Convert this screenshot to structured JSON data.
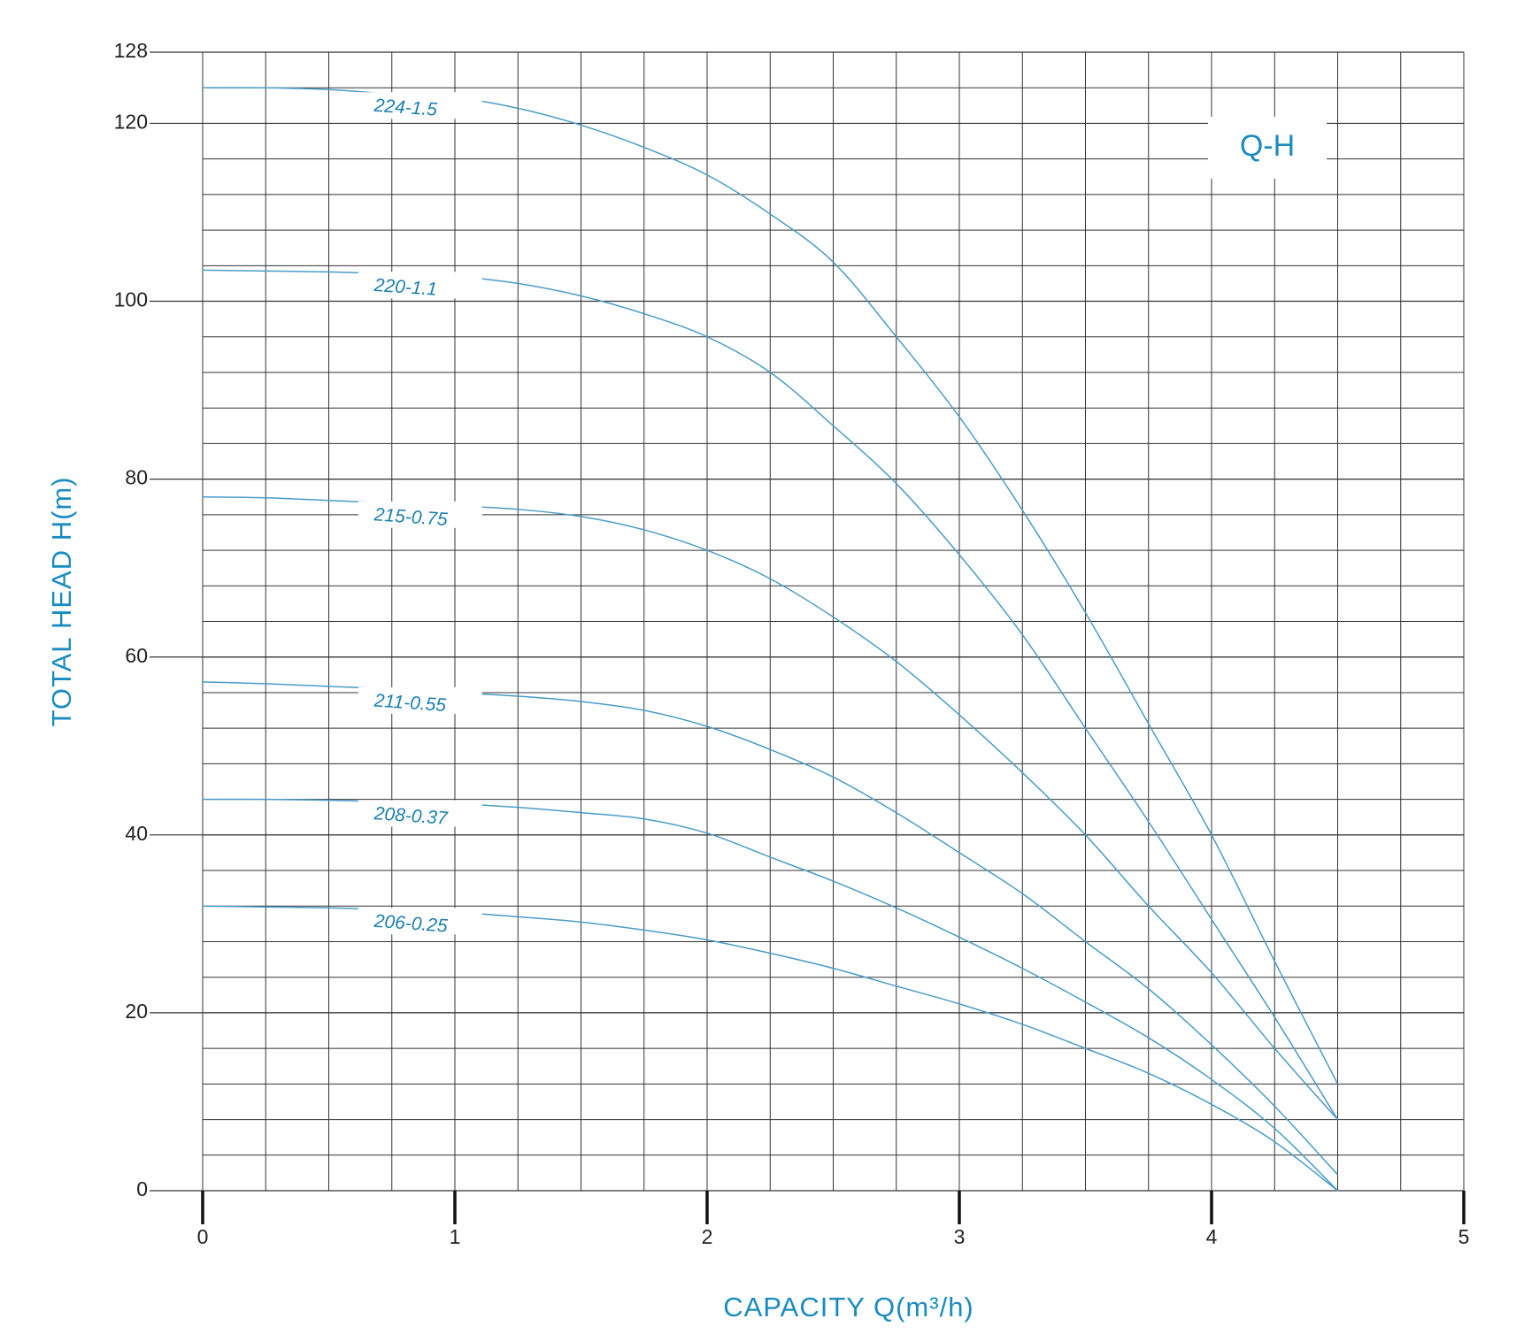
{
  "chart_data": {
    "type": "line",
    "annotation": "Q-H",
    "x_label": "CAPACITY Q(m³/h)",
    "y_label": "TOTAL HEAD H(m)",
    "x": [
      0,
      0.25,
      0.5,
      0.75,
      1,
      1.25,
      1.5,
      1.75,
      2,
      2.25,
      2.5,
      2.75,
      3,
      3.25,
      3.5,
      3.75,
      4,
      4.25,
      4.5
    ],
    "xlim": [
      0,
      5
    ],
    "xticks": [
      0,
      1,
      2,
      3,
      4,
      5
    ],
    "ylim": [
      0,
      128
    ],
    "yticks": [
      0,
      20,
      40,
      60,
      80,
      100,
      120,
      128
    ],
    "grid": true,
    "series": [
      {
        "name": "224-1.5",
        "color": "#4a9cc8",
        "values": [
          124,
          124,
          123.8,
          123.3,
          122.9,
          121.7,
          119.8,
          117.3,
          114.2,
          109.8,
          104.4,
          96,
          87,
          76.5,
          65,
          52.5,
          40,
          25.8,
          12
        ]
      },
      {
        "name": "220-1.1",
        "color": "#4a9cc8",
        "values": [
          103.5,
          103.4,
          103.3,
          103.1,
          102.8,
          102,
          100.6,
          98.6,
          96,
          92,
          86,
          79.5,
          71.5,
          62.5,
          52,
          41.5,
          30.5,
          19.5,
          8
        ]
      },
      {
        "name": "215-0.75",
        "color": "#4a9cc8",
        "values": [
          78,
          77.9,
          77.6,
          77.3,
          77,
          76.6,
          75.8,
          74.3,
          72,
          68.8,
          64.5,
          59.5,
          53.5,
          47,
          40,
          32,
          24.5,
          16,
          8
        ]
      },
      {
        "name": "211-0.55",
        "color": "#4a9cc8",
        "values": [
          57.2,
          57,
          56.7,
          56.4,
          56,
          55.6,
          55,
          54,
          52.2,
          49.6,
          46.5,
          42.5,
          38,
          33.4,
          28,
          22.7,
          16.4,
          9.5,
          1.8
        ]
      },
      {
        "name": "208-0.37",
        "color": "#4a9cc8",
        "values": [
          44,
          44,
          43.9,
          43.7,
          43.5,
          43.1,
          42.5,
          41.8,
          40.2,
          37.5,
          34.8,
          31.8,
          28.5,
          25,
          21.2,
          17.2,
          12.5,
          7,
          0
        ]
      },
      {
        "name": "206-0.25",
        "color": "#4a9cc8",
        "values": [
          32,
          31.9,
          31.8,
          31.6,
          31.3,
          30.8,
          30.2,
          29.3,
          28.2,
          26.7,
          25,
          23,
          21,
          18.7,
          16,
          13.2,
          9.7,
          5.5,
          0
        ]
      }
    ]
  }
}
